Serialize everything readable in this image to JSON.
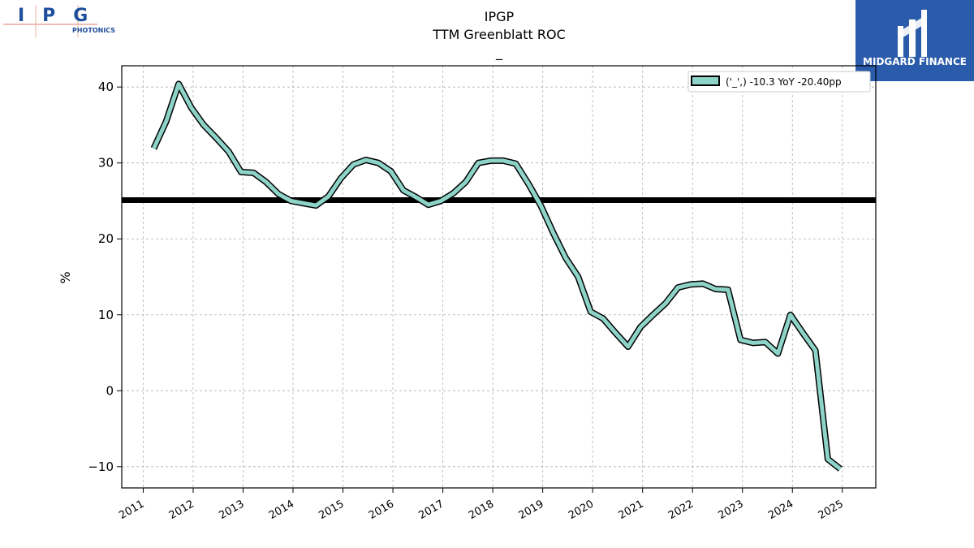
{
  "logo": {
    "company_letters": "IPG",
    "company_sub": "PHOTONICS",
    "brand_name": "MIDGARD FINANCE",
    "brand_color": "#2b5bab"
  },
  "chart_data": {
    "type": "line",
    "title": "IPGP",
    "subtitle": "TTM Greenblatt ROC",
    "subtitle2": "_",
    "xlabel": "",
    "ylabel": "%",
    "ylim": [
      -12.8,
      42.8
    ],
    "xlim": [
      2010.57,
      2025.67
    ],
    "yticks": [
      -10,
      0,
      10,
      20,
      30,
      40
    ],
    "ytick_labels": [
      "−10",
      "0",
      "10",
      "20",
      "30",
      "40"
    ],
    "xticks": [
      2011,
      2012,
      2013,
      2014,
      2015,
      2016,
      2017,
      2018,
      2019,
      2020,
      2021,
      2022,
      2023,
      2024,
      2025
    ],
    "grid": true,
    "legend_position": "top-right",
    "reference_line": {
      "y": 25.1,
      "color": "#000000"
    },
    "series": [
      {
        "name": "('_',) -10.3 YoY -20.40pp",
        "color": "#8dd3c7",
        "x": [
          2011.21,
          2011.46,
          2011.71,
          2011.96,
          2012.21,
          2012.46,
          2012.71,
          2012.96,
          2013.21,
          2013.46,
          2013.71,
          2013.96,
          2014.21,
          2014.46,
          2014.71,
          2014.96,
          2015.21,
          2015.46,
          2015.71,
          2015.96,
          2016.21,
          2016.46,
          2016.71,
          2016.96,
          2017.21,
          2017.46,
          2017.71,
          2017.96,
          2018.21,
          2018.46,
          2018.71,
          2018.96,
          2019.21,
          2019.46,
          2019.71,
          2019.96,
          2020.21,
          2020.46,
          2020.71,
          2020.96,
          2021.21,
          2021.46,
          2021.71,
          2021.96,
          2022.21,
          2022.46,
          2022.71,
          2022.96,
          2023.21,
          2023.46,
          2023.71,
          2023.96,
          2024.21,
          2024.46,
          2024.71,
          2024.96
        ],
        "values": [
          31.9,
          35.5,
          40.4,
          37.3,
          35.0,
          33.3,
          31.5,
          28.8,
          28.7,
          27.5,
          25.9,
          25.0,
          24.7,
          24.4,
          25.6,
          28.0,
          29.8,
          30.4,
          30.0,
          28.9,
          26.4,
          25.5,
          24.5,
          25.0,
          26.0,
          27.5,
          30.0,
          30.3,
          30.3,
          29.9,
          27.3,
          24.4,
          20.8,
          17.5,
          15.0,
          10.4,
          9.5,
          7.6,
          5.8,
          8.4,
          10.0,
          11.5,
          13.6,
          14.0,
          14.1,
          13.4,
          13.3,
          6.7,
          6.3,
          6.4,
          4.9,
          10.0,
          7.6,
          5.3,
          -9.0,
          -10.3
        ]
      }
    ]
  }
}
